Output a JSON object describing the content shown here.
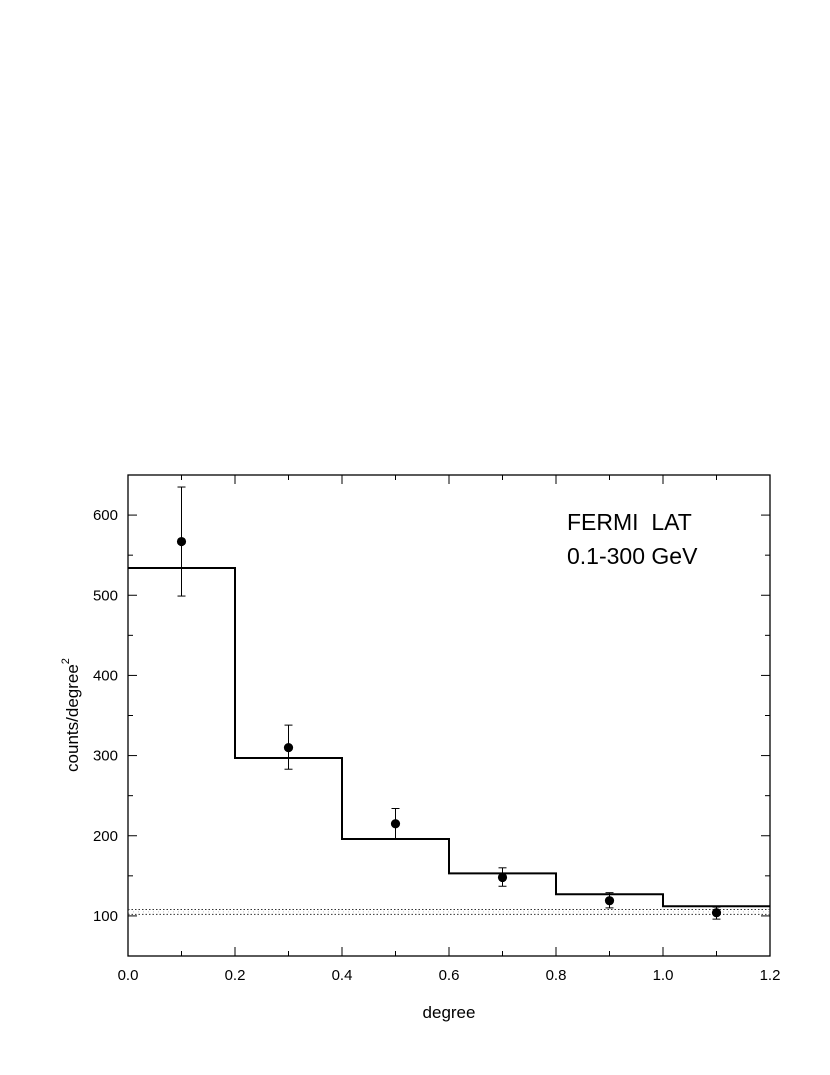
{
  "chart_data": {
    "type": "line",
    "xlabel": "degree",
    "ylabel": "counts/degree",
    "ylabel_superscript": "2",
    "xlim": [
      0.0,
      1.2
    ],
    "ylim": [
      50,
      650
    ],
    "x_ticks": [
      "0.0",
      "0.2",
      "0.4",
      "0.6",
      "0.8",
      "1.0",
      "1.2"
    ],
    "x_tick_values": [
      0.0,
      0.2,
      0.4,
      0.6,
      0.8,
      1.0,
      1.2
    ],
    "y_ticks": [
      "100",
      "200",
      "300",
      "400",
      "500",
      "600"
    ],
    "y_tick_values": [
      100,
      200,
      300,
      400,
      500,
      600
    ],
    "grid": false,
    "annotation": [
      "FERMI  LAT",
      "0.1-300 GeV"
    ],
    "model_histogram": {
      "bin_edges": [
        0.0,
        0.2,
        0.4,
        0.6,
        0.8,
        1.0,
        1.2
      ],
      "values": [
        534,
        297,
        196,
        153,
        127,
        112
      ]
    },
    "data_points": {
      "x": [
        0.1,
        0.3,
        0.5,
        0.7,
        0.9,
        1.1
      ],
      "y": [
        567,
        310,
        215,
        148,
        119,
        104
      ],
      "yerr_low": [
        68,
        27,
        19,
        11,
        9,
        8
      ],
      "yerr_high": [
        68,
        28,
        19,
        12,
        10,
        7
      ]
    },
    "background_band": {
      "y_low": 102,
      "y_mid": 105,
      "y_high": 108
    }
  }
}
